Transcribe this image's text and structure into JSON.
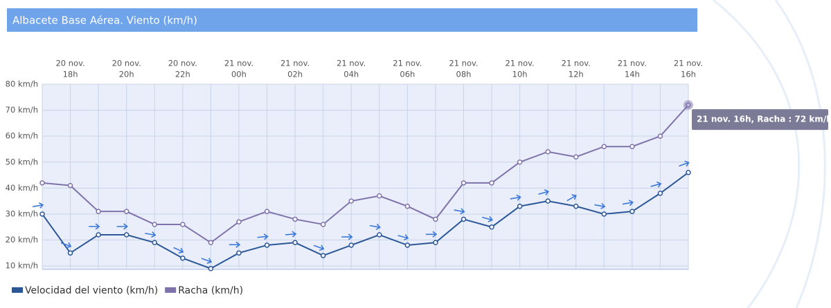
{
  "chart_data": {
    "type": "line",
    "title": "Albacete Base Aérea. Viento (km/h)",
    "categories": [
      null,
      [
        "20 nov.",
        "18h"
      ],
      null,
      [
        "20 nov.",
        "20h"
      ],
      null,
      [
        "20 nov.",
        "22h"
      ],
      null,
      [
        "21 nov.",
        "00h"
      ],
      null,
      [
        "21 nov.",
        "02h"
      ],
      null,
      [
        "21 nov.",
        "04h"
      ],
      null,
      [
        "21 nov.",
        "06h"
      ],
      null,
      [
        "21 nov.",
        "08h"
      ],
      null,
      [
        "21 nov.",
        "10h"
      ],
      null,
      [
        "21 nov.",
        "12h"
      ],
      null,
      [
        "21 nov.",
        "14h"
      ],
      null,
      [
        "21 nov.",
        "16h"
      ]
    ],
    "series": [
      {
        "name": "Velocidad del viento (km/h)",
        "color": "#2b5797",
        "values": [
          30,
          15,
          22,
          22,
          19,
          13,
          9,
          15,
          18,
          19,
          14,
          18,
          22,
          18,
          19,
          28,
          25,
          33,
          35,
          33,
          30,
          31,
          38,
          46
        ],
        "direction_arrows": [
          -10,
          20,
          0,
          0,
          10,
          25,
          20,
          0,
          -5,
          -5,
          20,
          0,
          10,
          15,
          0,
          10,
          15,
          -10,
          -15,
          -30,
          10,
          -10,
          -15,
          -20
        ]
      },
      {
        "name": "Racha (km/h)",
        "color": "#7f72aa",
        "values": [
          42,
          41,
          31,
          31,
          26,
          26,
          19,
          27,
          31,
          28,
          26,
          35,
          37,
          33,
          28,
          42,
          42,
          50,
          54,
          52,
          56,
          56,
          60,
          72
        ]
      }
    ],
    "ylim": [
      8.7,
      80
    ],
    "yticks": [
      {
        "value": 10,
        "label": "10 km/h"
      },
      {
        "value": 20,
        "label": "20 km/h"
      },
      {
        "value": 30,
        "label": "30 km/h"
      },
      {
        "value": 40,
        "label": "40 km/h"
      },
      {
        "value": 50,
        "label": "50 km/h"
      },
      {
        "value": 60,
        "label": "60 km/h"
      },
      {
        "value": 70,
        "label": "70 km/h"
      },
      {
        "value": 80,
        "label": "80 km/h"
      }
    ],
    "grid": true,
    "legend": "bottom-left",
    "tooltip": "21 nov. 16h, Racha : 72 km/h"
  }
}
